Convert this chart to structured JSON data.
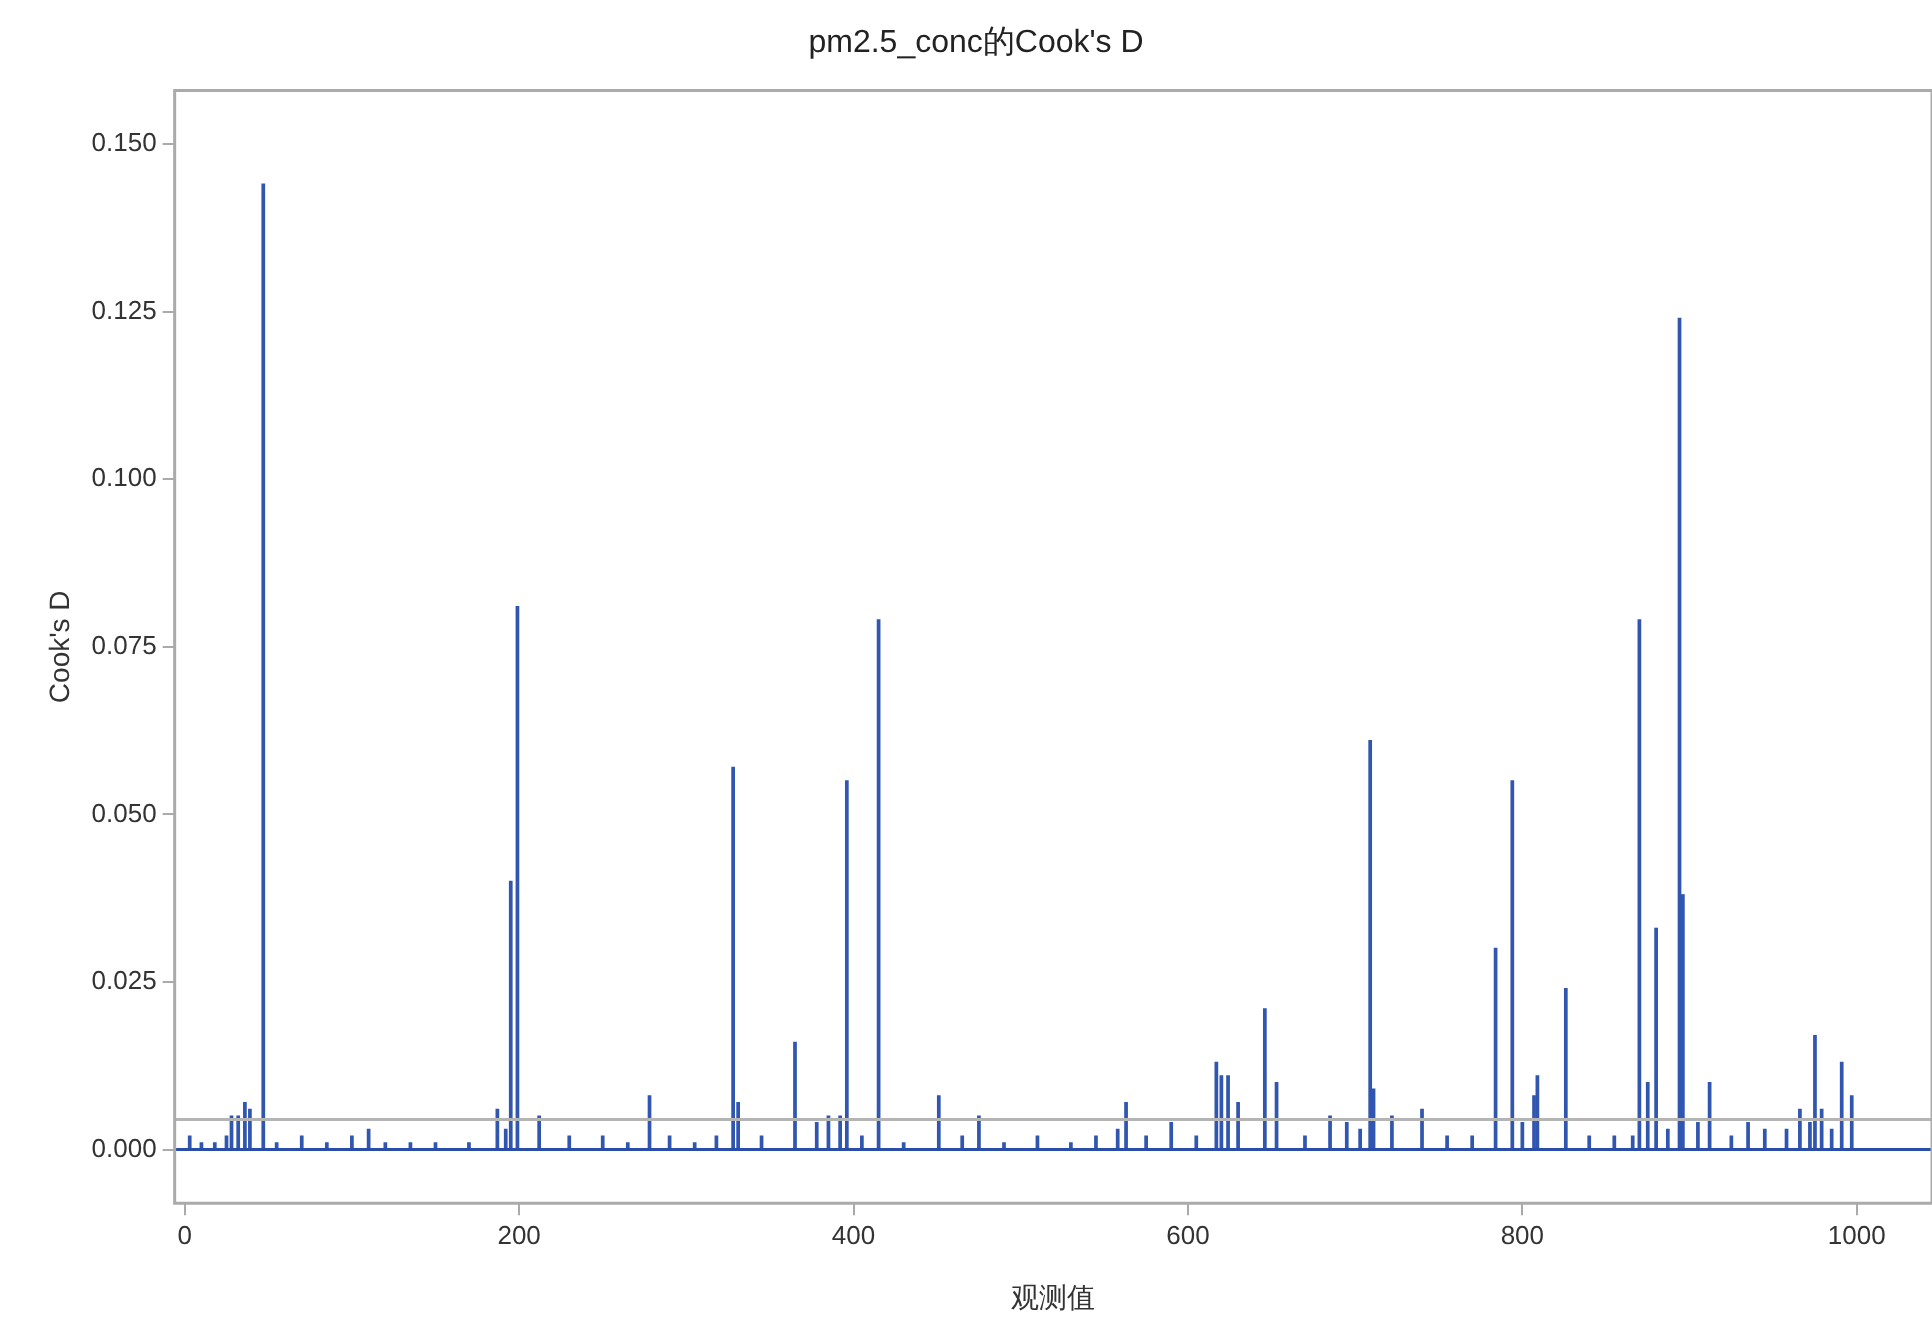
{
  "chart_data": {
    "type": "bar",
    "title": "pm2.5_conc的Cook's D",
    "xlabel": "观测值",
    "ylabel": "Cook's D",
    "x": [
      3,
      10,
      18,
      25,
      28,
      32,
      36,
      39,
      47,
      55,
      70,
      85,
      100,
      110,
      120,
      135,
      150,
      170,
      187,
      192,
      195,
      199,
      212,
      230,
      250,
      265,
      278,
      290,
      305,
      318,
      328,
      331,
      345,
      365,
      378,
      385,
      392,
      396,
      405,
      415,
      430,
      451,
      465,
      475,
      490,
      510,
      530,
      545,
      558,
      563,
      575,
      590,
      605,
      617,
      620,
      624,
      630,
      646,
      653,
      670,
      685,
      695,
      703,
      709,
      711,
      722,
      740,
      755,
      770,
      784,
      794,
      800,
      807,
      809,
      826,
      840,
      855,
      866,
      870,
      875,
      880,
      887,
      894,
      896,
      905,
      912,
      925,
      935,
      945,
      958,
      966,
      972,
      975,
      979,
      985,
      991,
      997
    ],
    "values": [
      0.002,
      0.001,
      0.001,
      0.002,
      0.005,
      0.005,
      0.007,
      0.006,
      0.144,
      0.001,
      0.002,
      0.001,
      0.002,
      0.003,
      0.001,
      0.001,
      0.001,
      0.001,
      0.006,
      0.003,
      0.04,
      0.081,
      0.005,
      0.002,
      0.002,
      0.001,
      0.008,
      0.002,
      0.001,
      0.002,
      0.057,
      0.007,
      0.002,
      0.016,
      0.004,
      0.005,
      0.005,
      0.055,
      0.002,
      0.079,
      0.001,
      0.008,
      0.002,
      0.005,
      0.001,
      0.002,
      0.001,
      0.002,
      0.003,
      0.007,
      0.002,
      0.004,
      0.002,
      0.013,
      0.011,
      0.011,
      0.007,
      0.021,
      0.01,
      0.002,
      0.005,
      0.004,
      0.003,
      0.061,
      0.009,
      0.005,
      0.006,
      0.002,
      0.002,
      0.03,
      0.055,
      0.004,
      0.008,
      0.011,
      0.024,
      0.002,
      0.002,
      0.002,
      0.079,
      0.01,
      0.033,
      0.003,
      0.124,
      0.038,
      0.004,
      0.01,
      0.002,
      0.004,
      0.003,
      0.003,
      0.006,
      0.004,
      0.017,
      0.006,
      0.003,
      0.013,
      0.008
    ],
    "color": "#3056b0",
    "xlim": [
      -6,
      1045
    ],
    "xticks": [
      0,
      200,
      400,
      600,
      800,
      1000
    ],
    "ylim": [
      -0.008,
      0.158
    ],
    "yticks": [
      {
        "value": 0,
        "label": "0.000"
      },
      {
        "value": 0.025,
        "label": "0.025"
      },
      {
        "value": 0.05,
        "label": "0.050"
      },
      {
        "value": 0.075,
        "label": "0.075"
      },
      {
        "value": 0.1,
        "label": "0.100"
      },
      {
        "value": 0.125,
        "label": "0.125"
      },
      {
        "value": 0.15,
        "label": "0.150"
      }
    ],
    "ref_lines": [
      {
        "axis": "y",
        "value": 0,
        "color": "#2a4ea8"
      },
      {
        "axis": "y",
        "value": 0.0045,
        "color": "#b4b4b4"
      }
    ],
    "grid": false,
    "legend": false
  }
}
